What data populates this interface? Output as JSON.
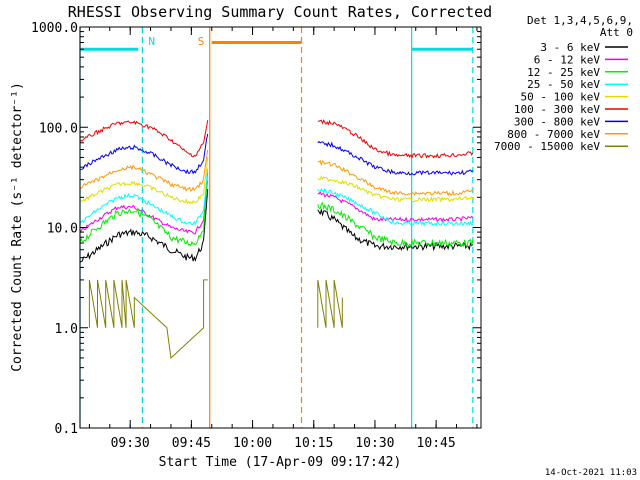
{
  "chart_data": {
    "type": "line",
    "title": "RHESSI Observing Summary Count Rates, Corrected",
    "xlabel": "Start Time (17-Apr-09 09:17:42)",
    "ylabel": "Corrected Count Rate (s⁻¹ detector⁻¹)",
    "y_scale": "log",
    "ylim": [
      0.1,
      1000
    ],
    "y_ticks": [
      {
        "value": 0.1,
        "label": "0.1"
      },
      {
        "value": 1,
        "label": "1.0"
      },
      {
        "value": 10,
        "label": "10.0"
      },
      {
        "value": 100,
        "label": "100.0"
      },
      {
        "value": 1000,
        "label": "1000.0"
      }
    ],
    "xlim": [
      "09:17:42",
      "10:56:00"
    ],
    "x_ticks": [
      {
        "time": "09:30",
        "label": "09:30"
      },
      {
        "time": "09:45",
        "label": "09:45"
      },
      {
        "time": "10:00",
        "label": "10:00"
      },
      {
        "time": "10:15",
        "label": "10:15"
      },
      {
        "time": "10:30",
        "label": "10:30"
      },
      {
        "time": "10:45",
        "label": "10:45"
      }
    ],
    "legend": {
      "position": "right",
      "header": [
        "Det 1,3,4,5,6,9,",
        "Att 0"
      ]
    },
    "series": [
      {
        "name": "3 - 6 keV",
        "color": "#000000",
        "points": [
          [
            "09:17:42",
            4.5
          ],
          [
            "09:22",
            6
          ],
          [
            "09:27",
            8.5
          ],
          [
            "09:31",
            9
          ],
          [
            "09:35",
            8
          ],
          [
            "09:40",
            6
          ],
          [
            "09:44",
            5
          ],
          [
            "09:46",
            5
          ],
          [
            "09:48",
            7
          ],
          [
            "09:49",
            25
          ],
          [
            "10:16",
            15
          ],
          [
            "10:20",
            12
          ],
          [
            "10:25",
            8
          ],
          [
            "10:30",
            6.5
          ],
          [
            "10:35",
            6.5
          ],
          [
            "10:40",
            6.5
          ],
          [
            "10:45",
            6.5
          ],
          [
            "10:50",
            6.5
          ],
          [
            "10:54",
            6.5
          ]
        ]
      },
      {
        "name": "6 - 12 keV",
        "color": "#ee00ee",
        "points": [
          [
            "09:17:42",
            9
          ],
          [
            "09:22",
            12
          ],
          [
            "09:27",
            16
          ],
          [
            "09:31",
            16
          ],
          [
            "09:35",
            13
          ],
          [
            "09:40",
            10
          ],
          [
            "09:44",
            9
          ],
          [
            "09:46",
            9
          ],
          [
            "09:48",
            12
          ],
          [
            "09:49",
            35
          ],
          [
            "10:16",
            22
          ],
          [
            "10:20",
            20
          ],
          [
            "10:25",
            16
          ],
          [
            "10:30",
            12
          ],
          [
            "10:35",
            12
          ],
          [
            "10:40",
            12
          ],
          [
            "10:45",
            12
          ],
          [
            "10:50",
            12
          ],
          [
            "10:54",
            12.5
          ]
        ]
      },
      {
        "name": "12 - 25 keV",
        "color": "#00ee00",
        "points": [
          [
            "09:17:42",
            7
          ],
          [
            "09:22",
            10
          ],
          [
            "09:27",
            14
          ],
          [
            "09:31",
            15
          ],
          [
            "09:35",
            12
          ],
          [
            "09:40",
            8
          ],
          [
            "09:44",
            7
          ],
          [
            "09:46",
            7
          ],
          [
            "09:48",
            10
          ],
          [
            "09:49",
            30
          ],
          [
            "10:16",
            17
          ],
          [
            "10:20",
            15
          ],
          [
            "10:25",
            11
          ],
          [
            "10:30",
            8
          ],
          [
            "10:35",
            7
          ],
          [
            "10:40",
            7
          ],
          [
            "10:45",
            7
          ],
          [
            "10:50",
            7
          ],
          [
            "10:54",
            7
          ]
        ]
      },
      {
        "name": "25 - 50 keV",
        "color": "#00ffff",
        "points": [
          [
            "09:17:42",
            11
          ],
          [
            "09:22",
            15
          ],
          [
            "09:27",
            20
          ],
          [
            "09:31",
            21
          ],
          [
            "09:35",
            17
          ],
          [
            "09:40",
            13
          ],
          [
            "09:44",
            11
          ],
          [
            "09:46",
            11
          ],
          [
            "09:48",
            15
          ],
          [
            "09:49",
            40
          ],
          [
            "10:16",
            24
          ],
          [
            "10:20",
            22
          ],
          [
            "10:25",
            18
          ],
          [
            "10:30",
            14
          ],
          [
            "10:35",
            11
          ],
          [
            "10:40",
            11
          ],
          [
            "10:45",
            11
          ],
          [
            "10:50",
            11
          ],
          [
            "10:54",
            11
          ]
        ]
      },
      {
        "name": "50 - 100 keV",
        "color": "#dddd00",
        "points": [
          [
            "09:17:42",
            18
          ],
          [
            "09:22",
            22
          ],
          [
            "09:27",
            27
          ],
          [
            "09:31",
            28
          ],
          [
            "09:35",
            25
          ],
          [
            "09:40",
            20
          ],
          [
            "09:44",
            18
          ],
          [
            "09:46",
            18
          ],
          [
            "09:48",
            22
          ],
          [
            "09:49",
            48
          ],
          [
            "10:16",
            31
          ],
          [
            "10:20",
            30
          ],
          [
            "10:25",
            26
          ],
          [
            "10:30",
            21
          ],
          [
            "10:35",
            19
          ],
          [
            "10:40",
            19
          ],
          [
            "10:45",
            19
          ],
          [
            "10:50",
            19
          ],
          [
            "10:54",
            20
          ]
        ]
      },
      {
        "name": "100 - 300 keV",
        "color": "#ee0000",
        "points": [
          [
            "09:17:42",
            72
          ],
          [
            "09:22",
            90
          ],
          [
            "09:27",
            110
          ],
          [
            "09:31",
            112
          ],
          [
            "09:35",
            100
          ],
          [
            "09:40",
            75
          ],
          [
            "09:44",
            55
          ],
          [
            "09:46",
            52
          ],
          [
            "09:48",
            70
          ],
          [
            "09:49",
            115
          ],
          [
            "10:16",
            115
          ],
          [
            "10:20",
            110
          ],
          [
            "10:25",
            85
          ],
          [
            "10:30",
            60
          ],
          [
            "10:35",
            52
          ],
          [
            "10:40",
            52
          ],
          [
            "10:45",
            52
          ],
          [
            "10:50",
            53
          ],
          [
            "10:54",
            55
          ]
        ]
      },
      {
        "name": "300 - 800 keV",
        "color": "#0000ee",
        "points": [
          [
            "09:17:42",
            38
          ],
          [
            "09:22",
            48
          ],
          [
            "09:27",
            60
          ],
          [
            "09:31",
            63
          ],
          [
            "09:35",
            55
          ],
          [
            "09:40",
            42
          ],
          [
            "09:44",
            36
          ],
          [
            "09:46",
            36
          ],
          [
            "09:48",
            48
          ],
          [
            "09:49",
            85
          ],
          [
            "10:16",
            70
          ],
          [
            "10:20",
            66
          ],
          [
            "10:25",
            52
          ],
          [
            "10:30",
            40
          ],
          [
            "10:35",
            35
          ],
          [
            "10:40",
            35
          ],
          [
            "10:45",
            35
          ],
          [
            "10:50",
            35
          ],
          [
            "10:54",
            36
          ]
        ]
      },
      {
        "name": "800 - 7000 keV",
        "color": "#ff9900",
        "points": [
          [
            "09:17:42",
            25
          ],
          [
            "09:22",
            30
          ],
          [
            "09:27",
            38
          ],
          [
            "09:31",
            40
          ],
          [
            "09:35",
            34
          ],
          [
            "09:40",
            27
          ],
          [
            "09:44",
            24
          ],
          [
            "09:46",
            24
          ],
          [
            "09:48",
            30
          ],
          [
            "09:49",
            60
          ],
          [
            "10:16",
            45
          ],
          [
            "10:20",
            42
          ],
          [
            "10:25",
            33
          ],
          [
            "10:30",
            25
          ],
          [
            "10:35",
            22
          ],
          [
            "10:40",
            22
          ],
          [
            "10:45",
            22
          ],
          [
            "10:50",
            22
          ],
          [
            "10:54",
            23
          ]
        ]
      },
      {
        "name": "7000 - 15000 keV",
        "color": "#808000",
        "points": [
          [
            "09:20",
            1
          ],
          [
            "09:20",
            3
          ],
          [
            "09:22",
            1
          ],
          [
            "09:22",
            3
          ],
          [
            "09:24",
            1
          ],
          [
            "09:24",
            3
          ],
          [
            "09:26",
            1
          ],
          [
            "09:26",
            3
          ],
          [
            "09:28",
            1
          ],
          [
            "09:28",
            3
          ],
          [
            "09:29",
            1
          ],
          [
            "09:29",
            3
          ],
          [
            "09:31",
            1
          ],
          [
            "09:31",
            2
          ],
          [
            "09:39",
            1
          ],
          [
            "09:40",
            0.5
          ],
          [
            "09:48",
            1
          ],
          [
            "09:48",
            3
          ],
          [
            "09:49",
            3
          ],
          [
            "10:16",
            1
          ],
          [
            "10:16",
            3
          ],
          [
            "10:18",
            1
          ],
          [
            "10:18",
            3
          ],
          [
            "10:20",
            1
          ],
          [
            "10:20",
            3
          ],
          [
            "10:22",
            1
          ],
          [
            "10:22",
            2
          ]
        ]
      }
    ],
    "annotations": [
      {
        "label": "N",
        "color": "#00dddd",
        "vlines": [
          {
            "time": "09:33",
            "style": "dashed"
          },
          {
            "time": "10:39",
            "style": "solid"
          },
          {
            "time": "10:54",
            "style": "dashed"
          }
        ],
        "bars": [
          {
            "from": "09:17:42",
            "to": "09:32",
            "level": 600
          },
          {
            "from": "10:39",
            "to": "10:54",
            "level": 600
          }
        ]
      },
      {
        "label": "S",
        "color": "#ff8000",
        "vlines": [
          {
            "time": "09:49:30",
            "style": "solid"
          },
          {
            "time": "10:12",
            "style": "dashed"
          }
        ],
        "bars": [
          {
            "from": "09:50",
            "to": "10:12",
            "level": 700
          }
        ]
      },
      {
        "label": "",
        "color": "#00dddd",
        "vlines": [
          {
            "time": "09:17:42",
            "style": "solid"
          }
        ]
      }
    ],
    "grid": false
  },
  "footer": {
    "timestamp": "14-Oct-2021 11:03"
  }
}
